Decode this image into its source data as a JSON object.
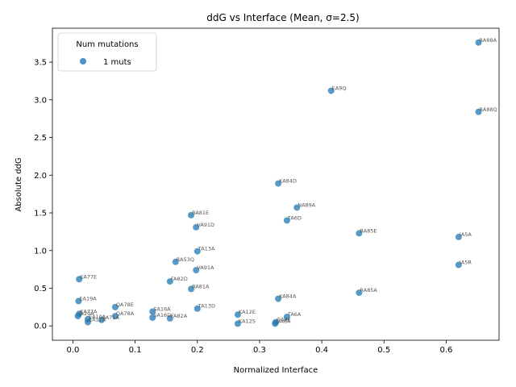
{
  "chart_data": {
    "type": "scatter",
    "title": "ddG vs Interface (Mean, σ=2.5)",
    "xlabel": "Normalized Interface",
    "ylabel": "Absolute ddG",
    "xlim": [
      -0.033,
      0.685
    ],
    "ylim": [
      -0.19,
      3.95
    ],
    "xticks": [
      "0.0",
      "0.1",
      "0.2",
      "0.3",
      "0.4",
      "0.5",
      "0.6"
    ],
    "xtick_values": [
      0.0,
      0.1,
      0.2,
      0.3,
      0.4,
      0.5,
      0.6
    ],
    "yticks": [
      "0.0",
      "0.5",
      "1.0",
      "1.5",
      "2.0",
      "2.5",
      "3.0",
      "3.5"
    ],
    "ytick_values": [
      0.0,
      0.5,
      1.0,
      1.5,
      2.0,
      2.5,
      3.0,
      3.5
    ],
    "grid": false,
    "legend": {
      "title": "Num mutations",
      "placement": "top-left",
      "entries": [
        {
          "label": "1 muts",
          "color": "#1f77b4"
        }
      ]
    },
    "series": [
      {
        "name": "1 muts",
        "color": "#1f77b4",
        "points": [
          {
            "x": 0.652,
            "y": 3.76,
            "label": "RA88A"
          },
          {
            "x": 0.415,
            "y": 3.12,
            "label": "EA9Q"
          },
          {
            "x": 0.652,
            "y": 2.84,
            "label": "RA88Q"
          },
          {
            "x": 0.33,
            "y": 1.89,
            "label": "KA84D"
          },
          {
            "x": 0.36,
            "y": 1.57,
            "label": "NA89A"
          },
          {
            "x": 0.19,
            "y": 1.47,
            "label": "RA81E"
          },
          {
            "x": 0.344,
            "y": 1.4,
            "label": "TA6D"
          },
          {
            "x": 0.198,
            "y": 1.31,
            "label": "VA91D"
          },
          {
            "x": 0.46,
            "y": 1.23,
            "label": "RA85E"
          },
          {
            "x": 0.62,
            "y": 1.18,
            "label": "IA5A"
          },
          {
            "x": 0.2,
            "y": 0.99,
            "label": "TA13A"
          },
          {
            "x": 0.165,
            "y": 0.85,
            "label": "RA53Q"
          },
          {
            "x": 0.62,
            "y": 0.81,
            "label": "IA5R"
          },
          {
            "x": 0.198,
            "y": 0.74,
            "label": "VA91A"
          },
          {
            "x": 0.01,
            "y": 0.62,
            "label": "KA77E"
          },
          {
            "x": 0.156,
            "y": 0.59,
            "label": "FA82D"
          },
          {
            "x": 0.19,
            "y": 0.49,
            "label": "RA81A"
          },
          {
            "x": 0.46,
            "y": 0.44,
            "label": "RA85A"
          },
          {
            "x": 0.33,
            "y": 0.36,
            "label": "KA84A"
          },
          {
            "x": 0.009,
            "y": 0.33,
            "label": "EA19A"
          },
          {
            "x": 0.068,
            "y": 0.25,
            "label": "QA78E"
          },
          {
            "x": 0.2,
            "y": 0.23,
            "label": "TA13D"
          },
          {
            "x": 0.128,
            "y": 0.19,
            "label": "SA16A"
          },
          {
            "x": 0.01,
            "y": 0.16,
            "label": "KA77A"
          },
          {
            "x": 0.265,
            "y": 0.15,
            "label": "KA12E"
          },
          {
            "x": 0.068,
            "y": 0.13,
            "label": "QA78A"
          },
          {
            "x": 0.008,
            "y": 0.13,
            "label": "IA20A"
          },
          {
            "x": 0.344,
            "y": 0.12,
            "label": "TA6A"
          },
          {
            "x": 0.128,
            "y": 0.11,
            "label": "SA16D"
          },
          {
            "x": 0.156,
            "y": 0.1,
            "label": "FA82A"
          },
          {
            "x": 0.024,
            "y": 0.09,
            "label": "EA10A"
          },
          {
            "x": 0.046,
            "y": 0.08,
            "label": "LA71A"
          },
          {
            "x": 0.024,
            "y": 0.05,
            "label": "EA11A"
          },
          {
            "x": 0.326,
            "y": 0.05,
            "label": "QA8E"
          },
          {
            "x": 0.265,
            "y": 0.03,
            "label": "KA12S"
          },
          {
            "x": 0.325,
            "y": 0.03,
            "label": "QA8A"
          }
        ]
      }
    ]
  }
}
